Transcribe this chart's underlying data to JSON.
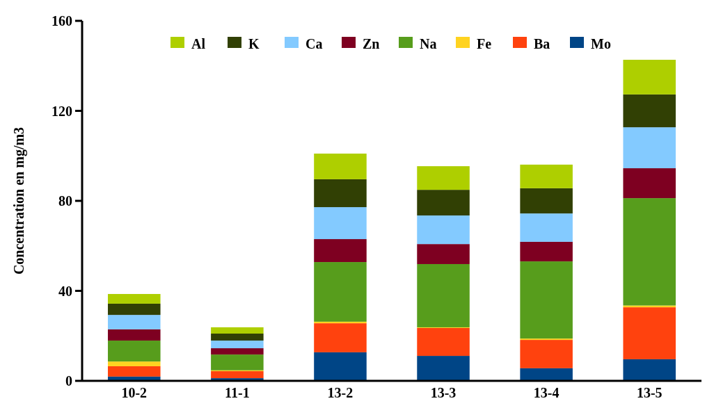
{
  "chart_data": {
    "type": "bar",
    "stacked": true,
    "ylabel": "Concentration en mg/m3",
    "categories": [
      "10-2",
      "11-1",
      "13-2",
      "13-3",
      "13-4",
      "13-5"
    ],
    "ylim": [
      0,
      160
    ],
    "yticks": [
      0,
      40,
      80,
      120,
      160
    ],
    "grid": false,
    "legend": "top",
    "series": [
      {
        "name": "Mo",
        "color": "#004586",
        "values": [
          1.9,
          1.2,
          12.7,
          11.1,
          5.6,
          9.6
        ]
      },
      {
        "name": "Ba",
        "color": "#ff420e",
        "values": [
          4.6,
          3.1,
          12.9,
          12.4,
          12.6,
          23.1
        ]
      },
      {
        "name": "Fe",
        "color": "#ffd320",
        "values": [
          2.1,
          0.4,
          0.7,
          0.3,
          0.6,
          0.8
        ]
      },
      {
        "name": "Na",
        "color": "#579d1c",
        "values": [
          9.3,
          7.0,
          26.5,
          28.1,
          34.3,
          47.7
        ]
      },
      {
        "name": "Zn",
        "color": "#7e0021",
        "values": [
          5.0,
          2.8,
          10.2,
          8.9,
          8.7,
          13.3
        ]
      },
      {
        "name": "Ca",
        "color": "#83caff",
        "values": [
          6.4,
          3.4,
          14.2,
          12.7,
          12.6,
          18.2
        ]
      },
      {
        "name": "K",
        "color": "#314004",
        "values": [
          5.0,
          3.1,
          12.4,
          11.4,
          11.2,
          14.6
        ]
      },
      {
        "name": "Al",
        "color": "#aecf00",
        "values": [
          4.3,
          2.8,
          11.4,
          10.5,
          10.5,
          15.4
        ]
      }
    ]
  }
}
